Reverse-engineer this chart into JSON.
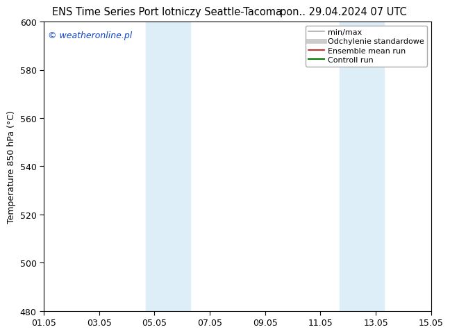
{
  "title_left": "ENS Time Series Port lotniczy Seattle-Tacoma",
  "title_right": "pon.. 29.04.2024 07 UTC",
  "ylabel": "Temperature 850 hPa (°C)",
  "ylim": [
    480,
    600
  ],
  "yticks": [
    480,
    500,
    520,
    540,
    560,
    580,
    600
  ],
  "xtick_labels": [
    "01.05",
    "03.05",
    "05.05",
    "07.05",
    "09.05",
    "11.05",
    "13.05",
    "15.05"
  ],
  "xtick_positions": [
    0,
    2,
    4,
    6,
    8,
    10,
    12,
    14
  ],
  "xlim": [
    0,
    14
  ],
  "shaded_bands": [
    {
      "x_start": 3.7,
      "x_end": 5.3,
      "color": "#ddeef8"
    },
    {
      "x_start": 10.7,
      "x_end": 12.3,
      "color": "#ddeef8"
    }
  ],
  "legend_entries": [
    {
      "label": "min/max",
      "color": "#b0b0b0",
      "lw": 1.2
    },
    {
      "label": "Odchylenie standardowe",
      "color": "#cccccc",
      "lw": 5
    },
    {
      "label": "Ensemble mean run",
      "color": "#cc0000",
      "lw": 1.2
    },
    {
      "label": "Controll run",
      "color": "#007700",
      "lw": 1.5
    }
  ],
  "watermark": "© weatheronline.pl",
  "watermark_color": "#1144cc",
  "background_color": "#ffffff",
  "plot_bg_color": "#ffffff",
  "title_fontsize": 10.5,
  "ylabel_fontsize": 9,
  "tick_fontsize": 9,
  "legend_fontsize": 8,
  "watermark_fontsize": 9
}
